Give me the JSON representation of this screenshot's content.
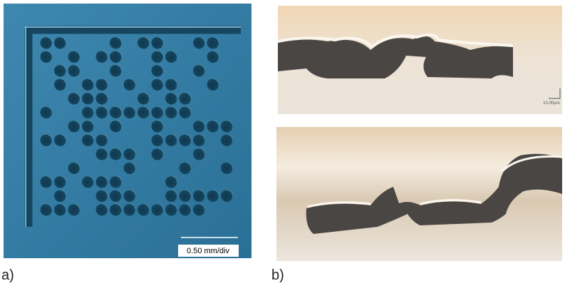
{
  "panels": [
    {
      "label": "a)",
      "scale_label": "0.50 mm/div"
    },
    {
      "label": "b)",
      "scale_label": "10,00µm"
    }
  ]
}
